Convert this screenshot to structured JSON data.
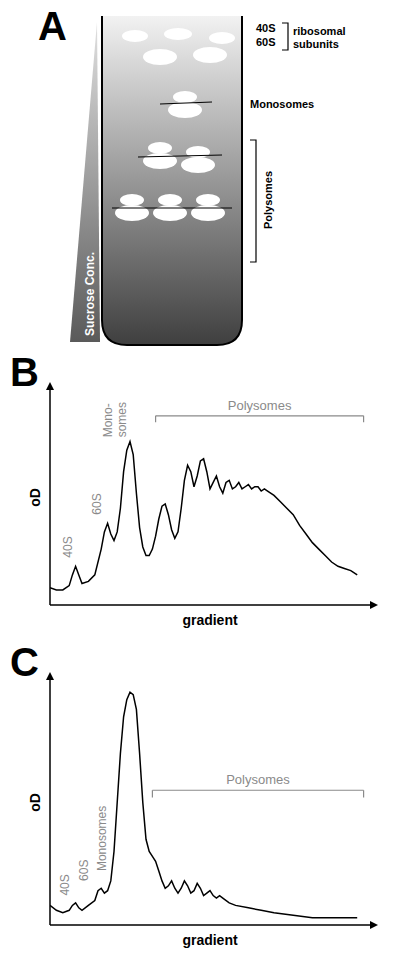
{
  "diagram": {
    "panel": "A",
    "gradient_label": "Sucrose Conc.",
    "subunit_labels": [
      "40S",
      "60S"
    ],
    "subunit_group": "ribosomal subunits",
    "monosome_label": "Monosomes",
    "polysome_label": "Polysomes"
  },
  "chart_data": [
    {
      "panel": "B",
      "type": "line",
      "x_label": "gradient",
      "y_label": "oD",
      "xlim": [
        0,
        100
      ],
      "ylim": [
        0,
        100
      ],
      "tick_labels": false,
      "color": "#000000",
      "x": [
        0,
        2,
        4,
        6,
        7,
        8,
        9,
        10,
        12,
        14,
        16,
        17,
        18,
        19,
        20,
        21,
        22,
        23,
        24,
        25,
        26,
        27,
        28,
        29,
        30,
        31,
        32,
        33,
        34,
        35,
        36,
        37,
        38,
        39,
        40,
        41,
        42,
        43,
        44,
        45,
        46,
        47,
        48,
        49,
        50,
        51,
        52,
        53,
        54,
        55,
        56,
        57,
        58,
        59,
        60,
        61,
        62,
        63,
        64,
        65,
        66,
        67,
        68,
        70,
        72,
        74,
        76,
        78,
        80,
        82,
        84,
        86,
        88,
        90,
        92,
        94,
        96
      ],
      "values": [
        8,
        7,
        7,
        9,
        14,
        18,
        14,
        10,
        11,
        14,
        26,
        34,
        38,
        33,
        30,
        34,
        45,
        62,
        72,
        76,
        70,
        52,
        36,
        27,
        23,
        23,
        26,
        32,
        40,
        46,
        47,
        42,
        35,
        31,
        34,
        45,
        58,
        65,
        62,
        55,
        60,
        67,
        68,
        62,
        54,
        57,
        60,
        55,
        52,
        57,
        58,
        54,
        55,
        57,
        54,
        55,
        56,
        54,
        55,
        55,
        53,
        54,
        53,
        51,
        48,
        45,
        42,
        37,
        33,
        29,
        26,
        23,
        20,
        18,
        17,
        16,
        14
      ],
      "annotations": [
        {
          "text": "40S",
          "x": 7,
          "y": 22
        },
        {
          "text": "60S",
          "x": 16,
          "y": 42
        },
        {
          "text": "Mono-somes",
          "x": 19.5,
          "y": 78
        }
      ],
      "bracket": {
        "text": "Polysomes",
        "x": [
          33,
          98
        ],
        "y": 88
      }
    },
    {
      "panel": "C",
      "type": "line",
      "x_label": "gradient",
      "y_label": "oD",
      "xlim": [
        0,
        100
      ],
      "ylim": [
        0,
        100
      ],
      "tick_labels": false,
      "color": "#000000",
      "x": [
        0,
        2,
        4,
        6,
        7,
        8,
        9,
        10,
        12,
        14,
        15,
        16,
        17,
        18,
        19,
        20,
        21,
        22,
        23,
        24,
        25,
        26,
        27,
        28,
        29,
        30,
        31,
        32,
        33,
        34,
        35,
        36,
        37,
        38,
        39,
        40,
        41,
        42,
        43,
        44,
        45,
        46,
        47,
        48,
        49,
        50,
        51,
        52,
        53,
        54,
        56,
        58,
        62,
        66,
        70,
        76,
        82,
        90,
        96
      ],
      "values": [
        8,
        6,
        5,
        6,
        8,
        9,
        7,
        6,
        8,
        10,
        14,
        15,
        13,
        14,
        18,
        30,
        50,
        70,
        85,
        92,
        95,
        94,
        88,
        70,
        50,
        35,
        30,
        28,
        26,
        22,
        18,
        15,
        16,
        18,
        15,
        13,
        15,
        18,
        16,
        13,
        14,
        17,
        15,
        12,
        13,
        14,
        12,
        11,
        12,
        11,
        9,
        8,
        7,
        6,
        5,
        4,
        3,
        3,
        3
      ],
      "annotations": [
        {
          "text": "40S",
          "x": 6,
          "y": 12
        },
        {
          "text": "60S",
          "x": 12,
          "y": 18
        },
        {
          "text": "Monosomes",
          "x": 17.5,
          "y": 22
        }
      ],
      "bracket": {
        "text": "Polysomes",
        "x": [
          32,
          98
        ],
        "y": 55
      }
    }
  ]
}
